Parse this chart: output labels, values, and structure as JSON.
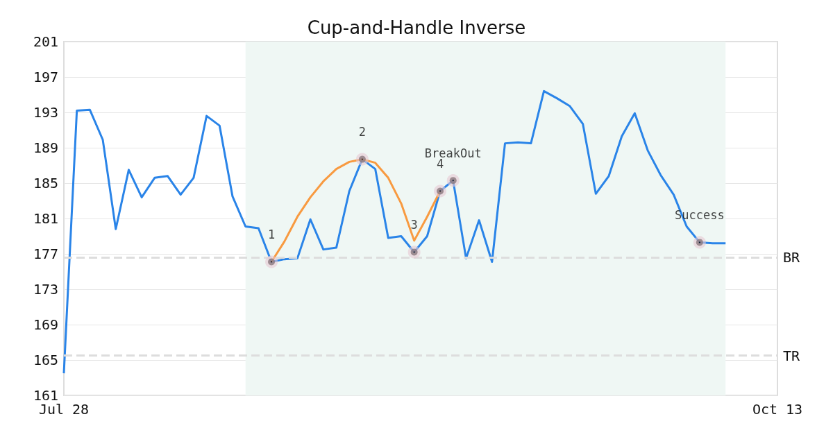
{
  "chart_data": {
    "type": "line",
    "title": "Cup-and-Handle Inverse",
    "categories": [
      "Jul 28",
      null,
      null,
      null,
      null,
      null,
      null,
      null,
      null,
      null,
      null,
      null,
      null,
      null,
      null,
      null,
      null,
      null,
      null,
      null,
      null,
      null,
      null,
      null,
      null,
      null,
      null,
      null,
      null,
      null,
      null,
      null,
      null,
      null,
      null,
      null,
      null,
      null,
      null,
      null,
      null,
      null,
      null,
      null,
      null,
      null,
      null,
      null,
      null,
      null,
      null,
      null,
      null,
      null,
      null,
      "Oct 13"
    ],
    "series": [
      {
        "color": "#2a84e8",
        "values": [
          163.5,
          193.2,
          193.3,
          189.9,
          179.8,
          186.5,
          183.4,
          185.6,
          185.8,
          183.7,
          185.6,
          192.6,
          191.5,
          183.5,
          180.1,
          179.9,
          176.1,
          176.4,
          176.5,
          180.9,
          177.5,
          177.7,
          184.1,
          187.7,
          186.6,
          178.8,
          179.0,
          177.2,
          179.0,
          184.1,
          185.3,
          176.5,
          180.8,
          176.1,
          189.5,
          189.6,
          189.5,
          195.4,
          194.6,
          193.7,
          191.7,
          183.8,
          185.8,
          190.3,
          192.9,
          188.7,
          185.9,
          183.7,
          180.1,
          178.3,
          178.2,
          178.2,
          null,
          null,
          null,
          null
        ]
      },
      {
        "color": "#f89a40",
        "values": [
          null,
          null,
          null,
          null,
          null,
          null,
          null,
          null,
          null,
          null,
          null,
          null,
          null,
          null,
          null,
          null,
          176.1,
          178.4,
          181.2,
          183.4,
          185.2,
          186.6,
          187.4,
          187.7,
          187.3,
          185.6,
          182.7,
          178.5,
          181.2,
          184.1,
          null,
          null,
          null,
          null,
          null,
          null,
          null,
          null,
          null,
          null,
          null,
          null,
          null,
          null,
          null,
          null,
          null,
          null,
          null,
          null,
          null,
          null,
          null,
          null,
          null,
          null
        ]
      },
      {
        "type": "scatter",
        "color": "#000000",
        "values": [
          null,
          null,
          null,
          null,
          null,
          null,
          null,
          null,
          null,
          null,
          null,
          null,
          null,
          null,
          null,
          null,
          176.1,
          null,
          null,
          null,
          null,
          null,
          null,
          187.7,
          null,
          null,
          null,
          177.2,
          null,
          184.1,
          185.3,
          null,
          null,
          null,
          null,
          null,
          null,
          null,
          null,
          null,
          null,
          null,
          null,
          null,
          null,
          null,
          null,
          null,
          null,
          178.3,
          null,
          null,
          null,
          null,
          null,
          null
        ]
      }
    ],
    "ylim": [
      161,
      201
    ],
    "yticks": [
      161,
      165,
      169,
      173,
      177,
      181,
      185,
      189,
      193,
      197,
      201
    ],
    "grid": "y",
    "ref_lines": [
      {
        "axis": "y",
        "value": 176.6,
        "label": "BR",
        "color": "#dddddd",
        "line_style": "dashed"
      },
      {
        "axis": "y",
        "value": 165.5,
        "label": "TR",
        "color": "#dddddd",
        "line_style": "dashed"
      }
    ],
    "annotations": [
      "1",
      "2",
      "3",
      "4",
      "BreakOut",
      "Success"
    ]
  }
}
